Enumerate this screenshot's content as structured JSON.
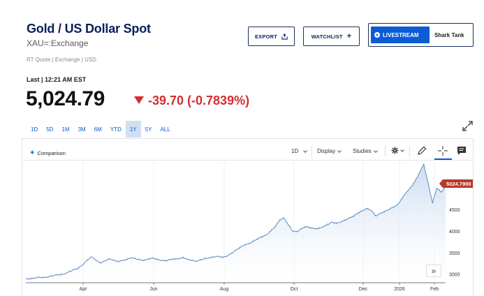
{
  "header": {
    "title": "Gold / US Dollar Spot",
    "symbol": "XAU=:Exchange",
    "quote_info": "RT Quote | Exchange | USD"
  },
  "actions": {
    "export_label": "EXPORT",
    "watchlist_label": "WATCHLIST",
    "livestream_label": "LIVESTREAM",
    "show_label": "Shark Tank"
  },
  "quote": {
    "last_label": "Last | 12:21 AM EST",
    "price": "5,024.79",
    "change": "-39.70 (-0.7839%)",
    "change_color": "#d32f2f"
  },
  "ranges": [
    "1D",
    "5D",
    "1M",
    "3M",
    "6M",
    "YTD",
    "1Y",
    "5Y",
    "ALL"
  ],
  "active_range": "1Y",
  "toolbar": {
    "comparison_label": "Comparison",
    "interval_label": "1D",
    "display_label": "Display",
    "studies_label": "Studies"
  },
  "chart_data": {
    "type": "area",
    "line_color": "#5b8cc4",
    "fill_color": "#c9daf0",
    "x_ticks": [
      "Apr",
      "Jun",
      "Aug",
      "Oct",
      "Dec",
      "2026",
      "Feb"
    ],
    "y_ticks": [
      3000,
      3500,
      4000,
      4500
    ],
    "ylim": [
      2800,
      5600
    ],
    "last_value_label": "5024.7900",
    "series": [
      {
        "values": [
          2890,
          2895,
          2910,
          2925,
          2920,
          2935,
          2960,
          2980,
          2990,
          3010,
          3060,
          3100,
          3140,
          3220,
          3320,
          3400,
          3330,
          3260,
          3300,
          3350,
          3330,
          3290,
          3310,
          3340,
          3380,
          3360,
          3330,
          3320,
          3350,
          3370,
          3340,
          3320,
          3310,
          3335,
          3350,
          3360,
          3380,
          3340,
          3320,
          3300,
          3330,
          3360,
          3380,
          3400,
          3410,
          3390,
          3420,
          3480,
          3550,
          3620,
          3680,
          3700,
          3760,
          3820,
          3870,
          3900,
          4000,
          4100,
          4250,
          4300,
          4150,
          4000,
          3980,
          4050,
          4100,
          4080,
          4050,
          4060,
          4100,
          4150,
          4200,
          4180,
          4210,
          4250,
          4300,
          4350,
          4420,
          4470,
          4520,
          4480,
          4350,
          4400,
          4450,
          4500,
          4550,
          4600,
          4750,
          4900,
          5000,
          5150,
          5350,
          5550,
          5100,
          4650,
          5000,
          4900,
          5024.79
        ]
      }
    ]
  }
}
